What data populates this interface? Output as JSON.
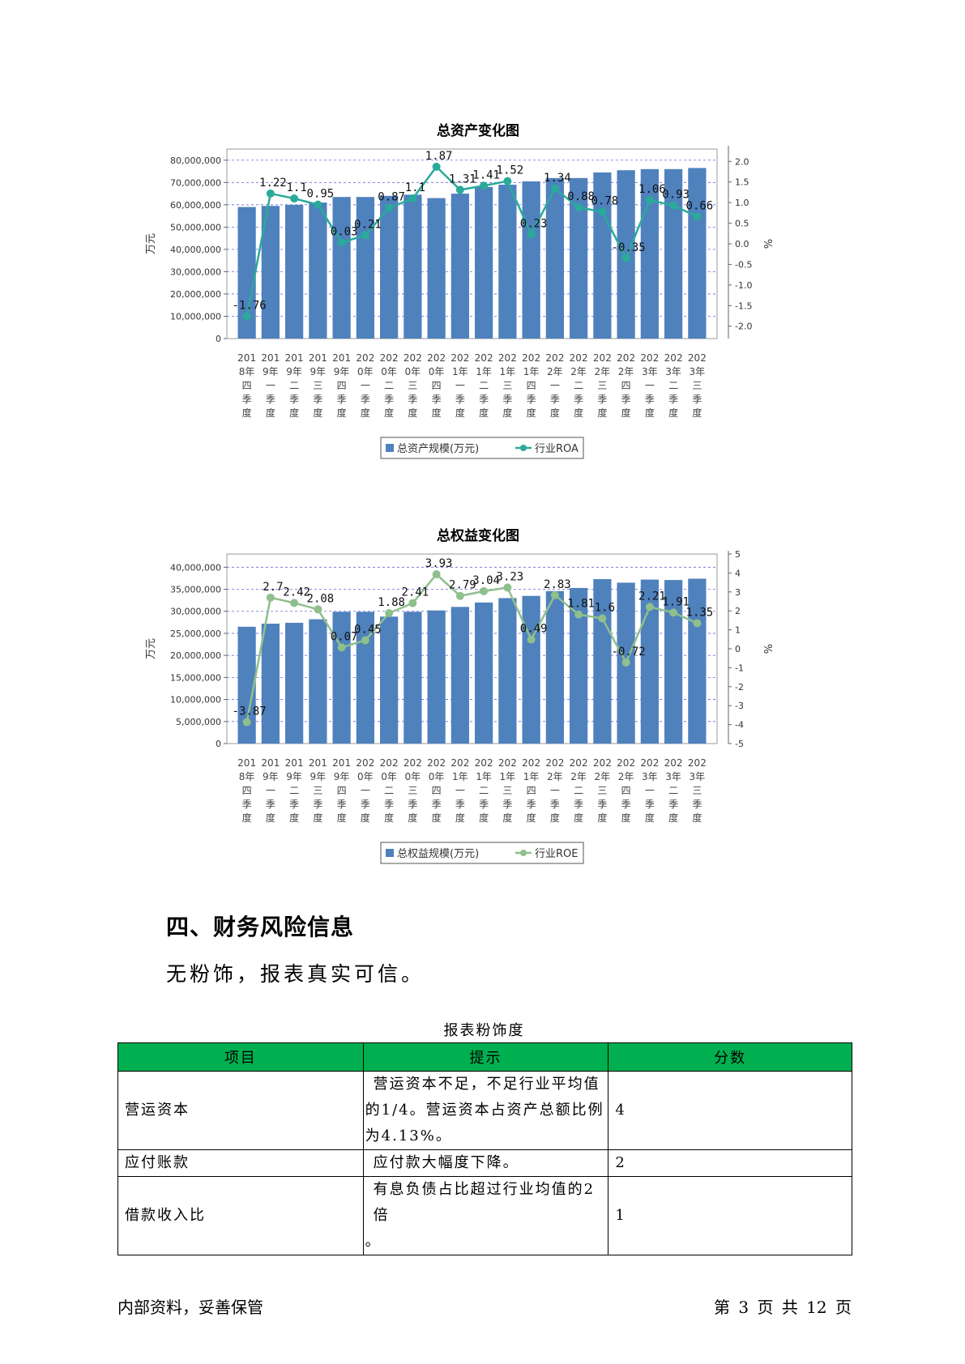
{
  "chart_data": [
    {
      "type": "bar+line",
      "title": "总资产变化图",
      "ylabel": "万元",
      "y2label": "%",
      "categories": [
        "2018年四季度",
        "2019年一季度",
        "2019年二季度",
        "2019年三季度",
        "2019年四季度",
        "2020年一季度",
        "2020年二季度",
        "2020年三季度",
        "2020年四季度",
        "2021年一季度",
        "2021年二季度",
        "2021年三季度",
        "2021年四季度",
        "2022年一季度",
        "2022年二季度",
        "2022年三季度",
        "2022年四季度",
        "2023年一季度",
        "2023年二季度",
        "2023年三季度"
      ],
      "category_label_columns": [
        [
          "201",
          "8年",
          "四",
          "季",
          "度"
        ],
        [
          "201",
          "9年",
          "一",
          "季",
          "度"
        ],
        [
          "201",
          "9年",
          "二",
          "季",
          "度"
        ],
        [
          "201",
          "9年",
          "三",
          "季",
          "度"
        ],
        [
          "201",
          "9年",
          "四",
          "季",
          "度"
        ],
        [
          "202",
          "0年",
          "一",
          "季",
          "度"
        ],
        [
          "202",
          "0年",
          "二",
          "季",
          "度"
        ],
        [
          "202",
          "0年",
          "三",
          "季",
          "度"
        ],
        [
          "202",
          "0年",
          "四",
          "季",
          "度"
        ],
        [
          "202",
          "1年",
          "一",
          "季",
          "度"
        ],
        [
          "202",
          "1年",
          "二",
          "季",
          "度"
        ],
        [
          "202",
          "1年",
          "三",
          "季",
          "度"
        ],
        [
          "202",
          "1年",
          "四",
          "季",
          "度"
        ],
        [
          "202",
          "2年",
          "一",
          "季",
          "度"
        ],
        [
          "202",
          "2年",
          "二",
          "季",
          "度"
        ],
        [
          "202",
          "2年",
          "三",
          "季",
          "度"
        ],
        [
          "202",
          "2年",
          "四",
          "季",
          "度"
        ],
        [
          "202",
          "3年",
          "一",
          "季",
          "度"
        ],
        [
          "202",
          "3年",
          "二",
          "季",
          "度"
        ],
        [
          "202",
          "3年",
          "三",
          "季",
          "度"
        ]
      ],
      "series": [
        {
          "name": "总资产规模(万元)",
          "kind": "bar",
          "axis": "left",
          "color": "#4f81bd",
          "values": [
            59000000,
            59500000,
            60000000,
            61000000,
            63500000,
            63500000,
            64000000,
            64500000,
            63000000,
            65000000,
            68000000,
            69000000,
            70500000,
            72000000,
            72000000,
            74500000,
            75500000,
            76000000,
            76000000,
            76500000
          ]
        },
        {
          "name": "行业ROA",
          "kind": "line",
          "axis": "right",
          "color": "#2aaa9a",
          "values": [
            -1.76,
            1.22,
            1.1,
            0.95,
            0.03,
            0.21,
            0.87,
            1.1,
            1.87,
            1.31,
            1.41,
            1.52,
            0.23,
            1.34,
            0.88,
            0.78,
            -0.35,
            1.06,
            0.93,
            0.66
          ],
          "labels": [
            "-1.76",
            "1.22",
            "1.1",
            "0.95",
            "0.03",
            "0.21",
            "0.87",
            "1.1",
            "1.87",
            "1.31",
            "1.41",
            "1.52",
            "0.23",
            "1.34",
            "0.88",
            "0.78",
            "-0.35",
            "1.06",
            "0.93",
            "0.66"
          ]
        }
      ],
      "ylim": [
        0,
        85000000
      ],
      "yticks": [
        0,
        10000000,
        20000000,
        30000000,
        40000000,
        50000000,
        60000000,
        70000000,
        80000000
      ],
      "ytick_labels": [
        "0",
        "10,000,000",
        "20,000,000",
        "30,000,000",
        "40,000,000",
        "50,000,000",
        "60,000,000",
        "70,000,000",
        "80,000,000"
      ],
      "y2lim": [
        -2.3,
        2.3
      ],
      "y2ticks": [
        -2.0,
        -1.5,
        -1.0,
        -0.5,
        0.0,
        0.5,
        1.0,
        1.5,
        2.0
      ],
      "y2tick_labels": [
        "-2.0",
        "-1.5",
        "-1.0",
        "-0.5",
        "0.0",
        "0.5",
        "1.0",
        "1.5",
        "2.0"
      ],
      "grid": true,
      "legend": "bottom"
    },
    {
      "type": "bar+line",
      "title": "总权益变化图",
      "ylabel": "万元",
      "y2label": "%",
      "categories": [
        "2018年四季度",
        "2019年一季度",
        "2019年二季度",
        "2019年三季度",
        "2019年四季度",
        "2020年一季度",
        "2020年二季度",
        "2020年三季度",
        "2020年四季度",
        "2021年一季度",
        "2021年二季度",
        "2021年三季度",
        "2021年四季度",
        "2022年一季度",
        "2022年二季度",
        "2022年三季度",
        "2022年四季度",
        "2023年一季度",
        "2023年二季度",
        "2023年三季度"
      ],
      "category_label_columns": [
        [
          "201",
          "8年",
          "四",
          "季",
          "度"
        ],
        [
          "201",
          "9年",
          "一",
          "季",
          "度"
        ],
        [
          "201",
          "9年",
          "二",
          "季",
          "度"
        ],
        [
          "201",
          "9年",
          "三",
          "季",
          "度"
        ],
        [
          "201",
          "9年",
          "四",
          "季",
          "度"
        ],
        [
          "202",
          "0年",
          "一",
          "季",
          "度"
        ],
        [
          "202",
          "0年",
          "二",
          "季",
          "度"
        ],
        [
          "202",
          "0年",
          "三",
          "季",
          "度"
        ],
        [
          "202",
          "0年",
          "四",
          "季",
          "度"
        ],
        [
          "202",
          "1年",
          "一",
          "季",
          "度"
        ],
        [
          "202",
          "1年",
          "二",
          "季",
          "度"
        ],
        [
          "202",
          "1年",
          "三",
          "季",
          "度"
        ],
        [
          "202",
          "1年",
          "四",
          "季",
          "度"
        ],
        [
          "202",
          "2年",
          "一",
          "季",
          "度"
        ],
        [
          "202",
          "2年",
          "二",
          "季",
          "度"
        ],
        [
          "202",
          "2年",
          "三",
          "季",
          "度"
        ],
        [
          "202",
          "2年",
          "四",
          "季",
          "度"
        ],
        [
          "202",
          "3年",
          "一",
          "季",
          "度"
        ],
        [
          "202",
          "3年",
          "二",
          "季",
          "度"
        ],
        [
          "202",
          "3年",
          "三",
          "季",
          "度"
        ]
      ],
      "series": [
        {
          "name": "总权益规模(万元)",
          "kind": "bar",
          "axis": "left",
          "color": "#4f81bd",
          "values": [
            26500000,
            27200000,
            27400000,
            28200000,
            29900000,
            29900000,
            28800000,
            29900000,
            30200000,
            31000000,
            32000000,
            33000000,
            33500000,
            34600000,
            35300000,
            37300000,
            36500000,
            37200000,
            37100000,
            37400000
          ]
        },
        {
          "name": "行业ROE",
          "kind": "line",
          "axis": "right",
          "color": "#8fbf8c",
          "values": [
            -3.87,
            2.7,
            2.42,
            2.08,
            0.07,
            0.45,
            1.88,
            2.41,
            3.93,
            2.79,
            3.04,
            3.23,
            0.49,
            2.83,
            1.81,
            1.6,
            -0.72,
            2.21,
            1.91,
            1.35
          ],
          "labels": [
            "-3.87",
            "2.7",
            "2.42",
            "2.08",
            "0.07",
            "0.45",
            "1.88",
            "2.41",
            "3.93",
            "2.79",
            "3.04",
            "3.23",
            "0.49",
            "2.83",
            "1.81",
            "1.6",
            "-0.72",
            "2.21",
            "1.91",
            "1.35"
          ]
        }
      ],
      "ylim": [
        0,
        43000000
      ],
      "yticks": [
        0,
        5000000,
        10000000,
        15000000,
        20000000,
        25000000,
        30000000,
        35000000,
        40000000
      ],
      "ytick_labels": [
        "0",
        "5,000,000",
        "10,000,000",
        "15,000,000",
        "20,000,000",
        "25,000,000",
        "30,000,000",
        "35,000,000",
        "40,000,000"
      ],
      "y2lim": [
        -5,
        5
      ],
      "y2ticks": [
        -5,
        -4,
        -3,
        -2,
        -1,
        0,
        1,
        2,
        3,
        4,
        5
      ],
      "y2tick_labels": [
        "-5",
        "-4",
        "-3",
        "-2",
        "-1",
        "0",
        "1",
        "2",
        "3",
        "4",
        "5"
      ],
      "grid": true,
      "legend": "bottom"
    }
  ],
  "section": {
    "heading": "四、财务风险信息",
    "text": "无粉饰，报表真实可信。"
  },
  "table": {
    "caption": "报表粉饰度",
    "headers": [
      "项目",
      "提示",
      "分数"
    ],
    "rows": [
      {
        "item": "营运资本",
        "hint_lines": [
          "营运资本不足，不足行业平均值",
          "的1/4。营运资本占资产总额比例",
          "为4.13%。"
        ],
        "score": "4"
      },
      {
        "item": "应付账款",
        "hint_lines": [
          "应付款大幅度下降。"
        ],
        "score": "2"
      },
      {
        "item": "借款收入比",
        "hint_lines": [
          "有息负债占比超过行业均值的2倍",
          "。"
        ],
        "score": "1"
      }
    ]
  },
  "footer": {
    "left": "内部资料，妥善保管",
    "right": "第 3 页   共 12 页"
  }
}
